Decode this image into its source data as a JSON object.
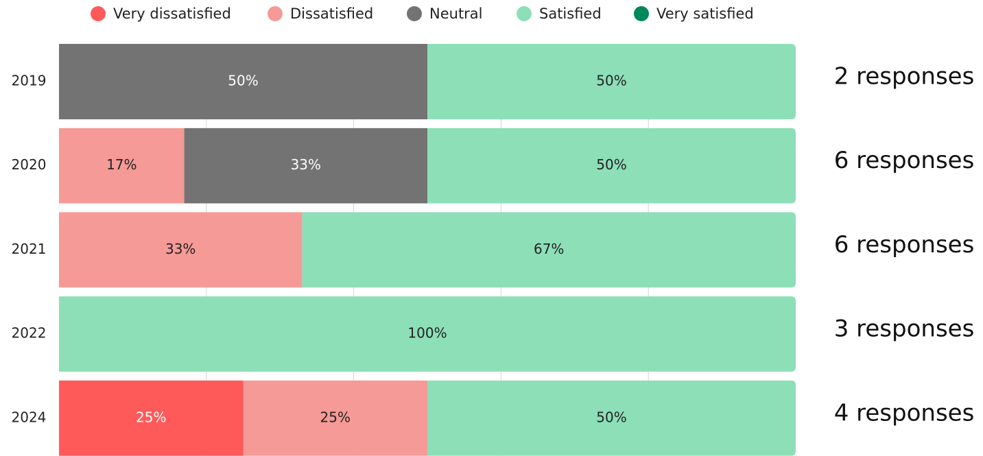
{
  "chart_data": {
    "type": "stacked-bar-horizontal",
    "categories": [
      "2019",
      "2020",
      "2021",
      "2022",
      "2024"
    ],
    "series": [
      {
        "name": "Very dissatisfied",
        "color": "#ff5a5a",
        "values": [
          0,
          0,
          0,
          0,
          25
        ],
        "value_labels": [
          null,
          null,
          null,
          null,
          "25%"
        ]
      },
      {
        "name": "Dissatisfied",
        "color": "#f59a96",
        "values": [
          0,
          17,
          33,
          0,
          25
        ],
        "value_labels": [
          null,
          "17%",
          "33%",
          null,
          "25%"
        ]
      },
      {
        "name": "Neutral",
        "color": "#737373",
        "values": [
          50,
          33,
          0,
          0,
          0
        ],
        "value_labels": [
          "50%",
          "33%",
          null,
          null,
          null
        ]
      },
      {
        "name": "Satisfied",
        "color": "#8ddfb8",
        "values": [
          50,
          50,
          67,
          100,
          50
        ],
        "value_labels": [
          "50%",
          "50%",
          "67%",
          "100%",
          "50%"
        ]
      },
      {
        "name": "Very satisfied",
        "color": "#00875a",
        "values": [
          0,
          0,
          0,
          0,
          0
        ],
        "value_labels": [
          null,
          null,
          null,
          null,
          null
        ]
      }
    ],
    "annotations": [
      "2 responses",
      "6 responses",
      "6 responses",
      "3 responses",
      "4 responses"
    ],
    "xlim": [
      0,
      100
    ],
    "xticks": [
      20,
      40,
      60,
      80
    ],
    "grid": true,
    "legend": "top"
  }
}
